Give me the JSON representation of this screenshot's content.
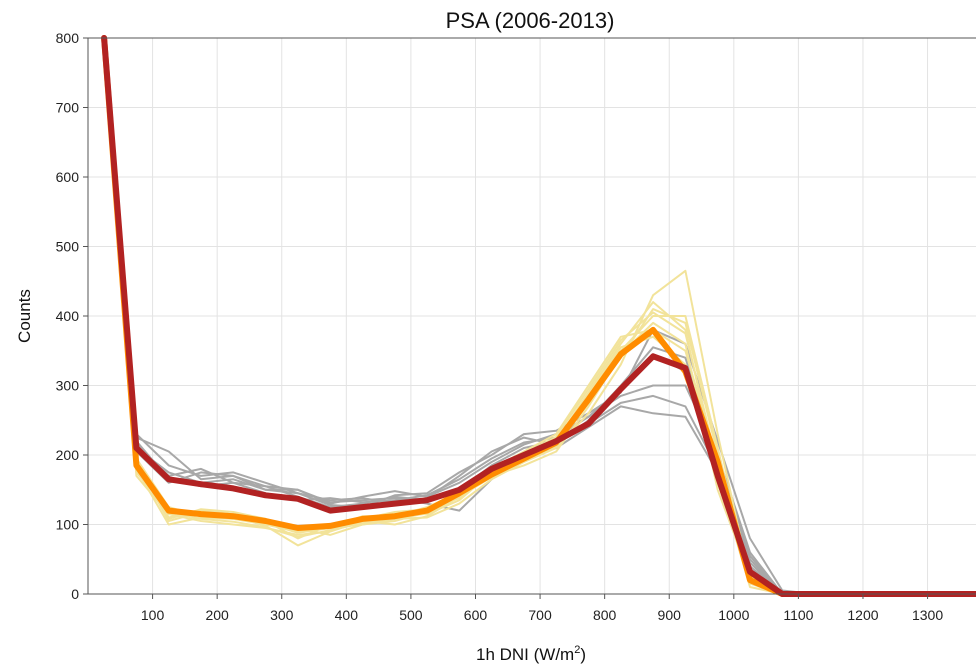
{
  "chart_data": {
    "type": "line",
    "title": "PSA (2006-2013)",
    "xlabel": "1h DNI (W/m",
    "xlabel_sup": "2",
    "xlabel_tail": ")",
    "ylabel": "Counts",
    "xlim": [
      0,
      1375
    ],
    "ylim": [
      0,
      800
    ],
    "grid": true,
    "xticks": [
      100,
      200,
      300,
      400,
      500,
      600,
      700,
      800,
      900,
      1000,
      1100,
      1200,
      1300
    ],
    "yticks": [
      0,
      100,
      200,
      300,
      400,
      500,
      600,
      700,
      800
    ],
    "x": [
      25,
      75,
      125,
      175,
      225,
      275,
      325,
      375,
      425,
      475,
      525,
      575,
      625,
      675,
      725,
      775,
      825,
      875,
      925,
      975,
      1025,
      1075,
      1125,
      1175,
      1225,
      1275,
      1325,
      1375
    ],
    "series_colors": {
      "gray": "#a8a8a8",
      "yellow": "#f2e39a",
      "orange": "#ff8c00",
      "red": "#b22222"
    },
    "series": [
      {
        "group": "gray",
        "values": [
          800,
          225,
          205,
          165,
          170,
          150,
          150,
          130,
          140,
          148,
          140,
          160,
          190,
          215,
          230,
          255,
          285,
          300,
          300,
          200,
          60,
          0,
          0,
          0,
          0,
          0,
          0,
          0
        ]
      },
      {
        "group": "gray",
        "values": [
          800,
          215,
          170,
          180,
          160,
          155,
          140,
          125,
          130,
          140,
          135,
          150,
          185,
          210,
          220,
          245,
          275,
          285,
          270,
          180,
          40,
          0,
          0,
          0,
          0,
          0,
          0,
          0
        ]
      },
      {
        "group": "gray",
        "values": [
          800,
          230,
          185,
          170,
          175,
          160,
          145,
          135,
          138,
          130,
          138,
          170,
          205,
          225,
          215,
          250,
          300,
          355,
          340,
          190,
          50,
          0,
          0,
          0,
          0,
          0,
          0,
          0
        ]
      },
      {
        "group": "gray",
        "values": [
          800,
          210,
          175,
          160,
          165,
          150,
          145,
          128,
          125,
          142,
          145,
          175,
          200,
          230,
          235,
          260,
          290,
          380,
          360,
          220,
          80,
          5,
          0,
          0,
          0,
          0,
          0,
          0
        ]
      },
      {
        "group": "gray",
        "values": [
          800,
          205,
          160,
          175,
          170,
          155,
          150,
          132,
          135,
          138,
          130,
          120,
          165,
          200,
          210,
          240,
          270,
          260,
          255,
          175,
          45,
          0,
          0,
          0,
          0,
          0,
          0,
          0
        ]
      },
      {
        "group": "gray",
        "values": [
          800,
          220,
          165,
          155,
          160,
          145,
          135,
          138,
          132,
          135,
          142,
          165,
          195,
          218,
          225,
          255,
          295,
          345,
          320,
          195,
          55,
          0,
          0,
          0,
          0,
          0,
          0,
          0
        ]
      },
      {
        "group": "yellow",
        "values": [
          800,
          180,
          100,
          110,
          108,
          100,
          90,
          95,
          100,
          108,
          110,
          130,
          165,
          190,
          210,
          260,
          330,
          430,
          465,
          230,
          20,
          0,
          0,
          0,
          0,
          0,
          0,
          0
        ]
      },
      {
        "group": "yellow",
        "values": [
          800,
          175,
          120,
          115,
          110,
          105,
          80,
          100,
          105,
          110,
          120,
          140,
          170,
          195,
          215,
          280,
          350,
          400,
          400,
          210,
          15,
          0,
          0,
          0,
          0,
          0,
          0,
          0
        ]
      },
      {
        "group": "yellow",
        "values": [
          800,
          190,
          105,
          118,
          112,
          98,
          70,
          90,
          110,
          115,
          115,
          135,
          175,
          200,
          220,
          290,
          360,
          420,
          380,
          170,
          10,
          0,
          0,
          0,
          0,
          0,
          0,
          0
        ]
      },
      {
        "group": "yellow",
        "values": [
          800,
          185,
          110,
          120,
          115,
          100,
          95,
          85,
          100,
          105,
          118,
          150,
          170,
          185,
          205,
          270,
          345,
          390,
          360,
          150,
          25,
          0,
          0,
          0,
          0,
          0,
          0,
          0
        ]
      },
      {
        "group": "yellow",
        "values": [
          800,
          195,
          125,
          112,
          108,
          102,
          88,
          95,
          112,
          112,
          125,
          145,
          180,
          205,
          230,
          300,
          370,
          380,
          350,
          190,
          30,
          0,
          0,
          0,
          0,
          0,
          0,
          0
        ]
      },
      {
        "group": "yellow",
        "values": [
          800,
          170,
          115,
          105,
          100,
          95,
          85,
          90,
          105,
          100,
          112,
          140,
          168,
          192,
          212,
          275,
          340,
          410,
          390,
          200,
          20,
          0,
          0,
          0,
          0,
          0,
          0,
          0
        ]
      },
      {
        "group": "yellow",
        "values": [
          800,
          188,
          108,
          122,
          118,
          108,
          92,
          100,
          108,
          118,
          122,
          138,
          172,
          198,
          218,
          285,
          355,
          370,
          330,
          160,
          35,
          0,
          0,
          0,
          0,
          0,
          0,
          0
        ]
      },
      {
        "group": "yellow",
        "values": [
          800,
          182,
          118,
          108,
          104,
          96,
          82,
          92,
          102,
          108,
          116,
          142,
          176,
          202,
          226,
          295,
          365,
          405,
          375,
          185,
          18,
          0,
          0,
          0,
          0,
          0,
          0,
          0
        ]
      },
      {
        "group": "orange",
        "values": [
          800,
          185,
          120,
          115,
          112,
          105,
          95,
          98,
          108,
          112,
          120,
          145,
          172,
          195,
          218,
          280,
          345,
          380,
          320,
          190,
          20,
          0,
          0,
          0,
          0,
          0,
          0,
          0
        ]
      },
      {
        "group": "red",
        "values": [
          800,
          210,
          165,
          158,
          152,
          142,
          137,
          120,
          125,
          130,
          135,
          150,
          180,
          200,
          220,
          245,
          295,
          342,
          325,
          170,
          32,
          0,
          0,
          0,
          0,
          0,
          0,
          0
        ]
      }
    ]
  }
}
